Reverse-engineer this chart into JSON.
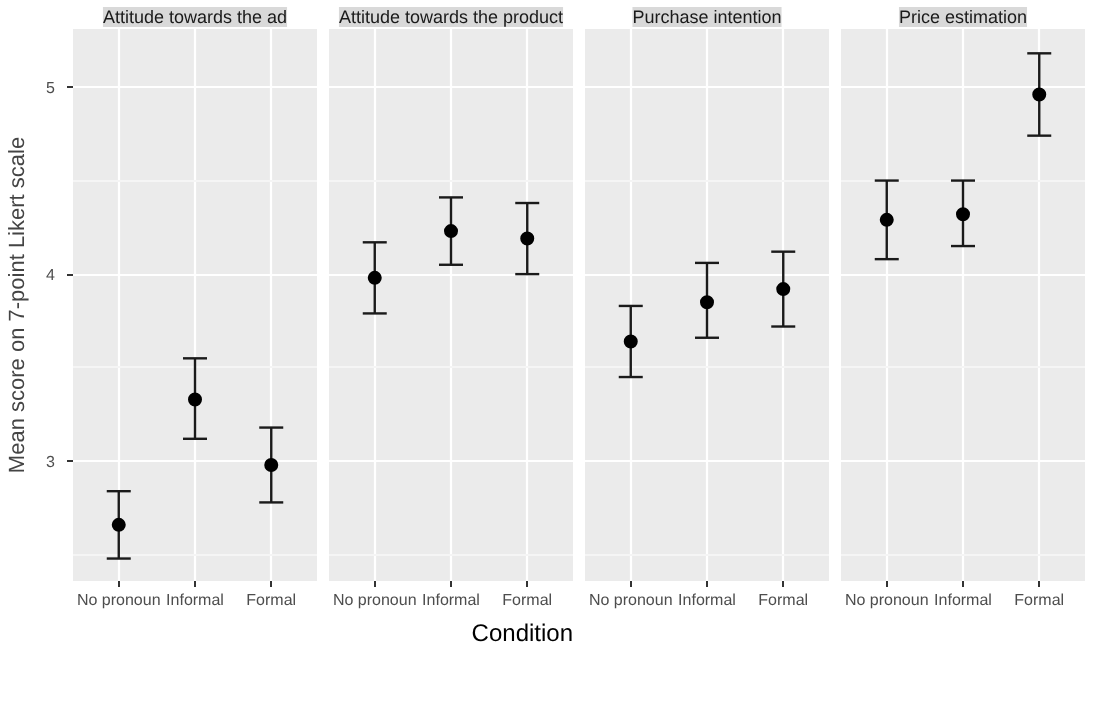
{
  "chart_data": [
    {
      "type": "scatter",
      "title": "Attitude towards the ad",
      "ylabel": "Mean score on 7-point Likert scale",
      "categories": [
        "No pronoun",
        "Informal",
        "Formal"
      ],
      "values": [
        2.66,
        3.33,
        2.98
      ],
      "errors": [
        [
          2.48,
          2.84
        ],
        [
          3.12,
          3.55
        ],
        [
          2.78,
          3.18
        ]
      ],
      "color": "#000000",
      "marker": "circle",
      "ylim": [
        2.36,
        5.31
      ],
      "yticks": [
        3,
        4,
        5
      ],
      "grid": true
    },
    {
      "type": "scatter",
      "title": "Attitude towards the product",
      "xlabel": "Condition",
      "categories": [
        "No pronoun",
        "Informal",
        "Formal"
      ],
      "values": [
        3.98,
        4.23,
        4.19
      ],
      "errors": [
        [
          3.79,
          4.17
        ],
        [
          4.05,
          4.41
        ],
        [
          4.0,
          4.38
        ]
      ],
      "color": "#000000",
      "marker": "circle",
      "ylim": [
        2.36,
        5.31
      ],
      "yticks": [
        3,
        4,
        5
      ],
      "grid": true,
      "tick_labels": "x"
    },
    {
      "type": "scatter",
      "title": "Purchase intention",
      "categories": [
        "No pronoun",
        "Informal",
        "Formal"
      ],
      "values": [
        3.64,
        3.85,
        3.92
      ],
      "errors": [
        [
          3.45,
          3.83
        ],
        [
          3.66,
          4.06
        ],
        [
          3.72,
          4.12
        ]
      ],
      "color": "#000000",
      "marker": "circle",
      "ylim": [
        2.36,
        5.31
      ],
      "yticks": [
        3,
        4,
        5
      ],
      "grid": true,
      "tick_labels": "x"
    },
    {
      "type": "scatter",
      "title": "Price estimation",
      "categories": [
        "No pronoun",
        "Informal",
        "Formal"
      ],
      "values": [
        4.29,
        4.32,
        4.96
      ],
      "errors": [
        [
          4.08,
          4.5
        ],
        [
          4.15,
          4.5
        ],
        [
          4.74,
          5.18
        ]
      ],
      "color": "#000000",
      "marker": "circle",
      "ylim": [
        2.36,
        5.31
      ],
      "yticks": [
        3,
        4,
        5
      ],
      "grid": true,
      "tick_labels": "x"
    }
  ]
}
